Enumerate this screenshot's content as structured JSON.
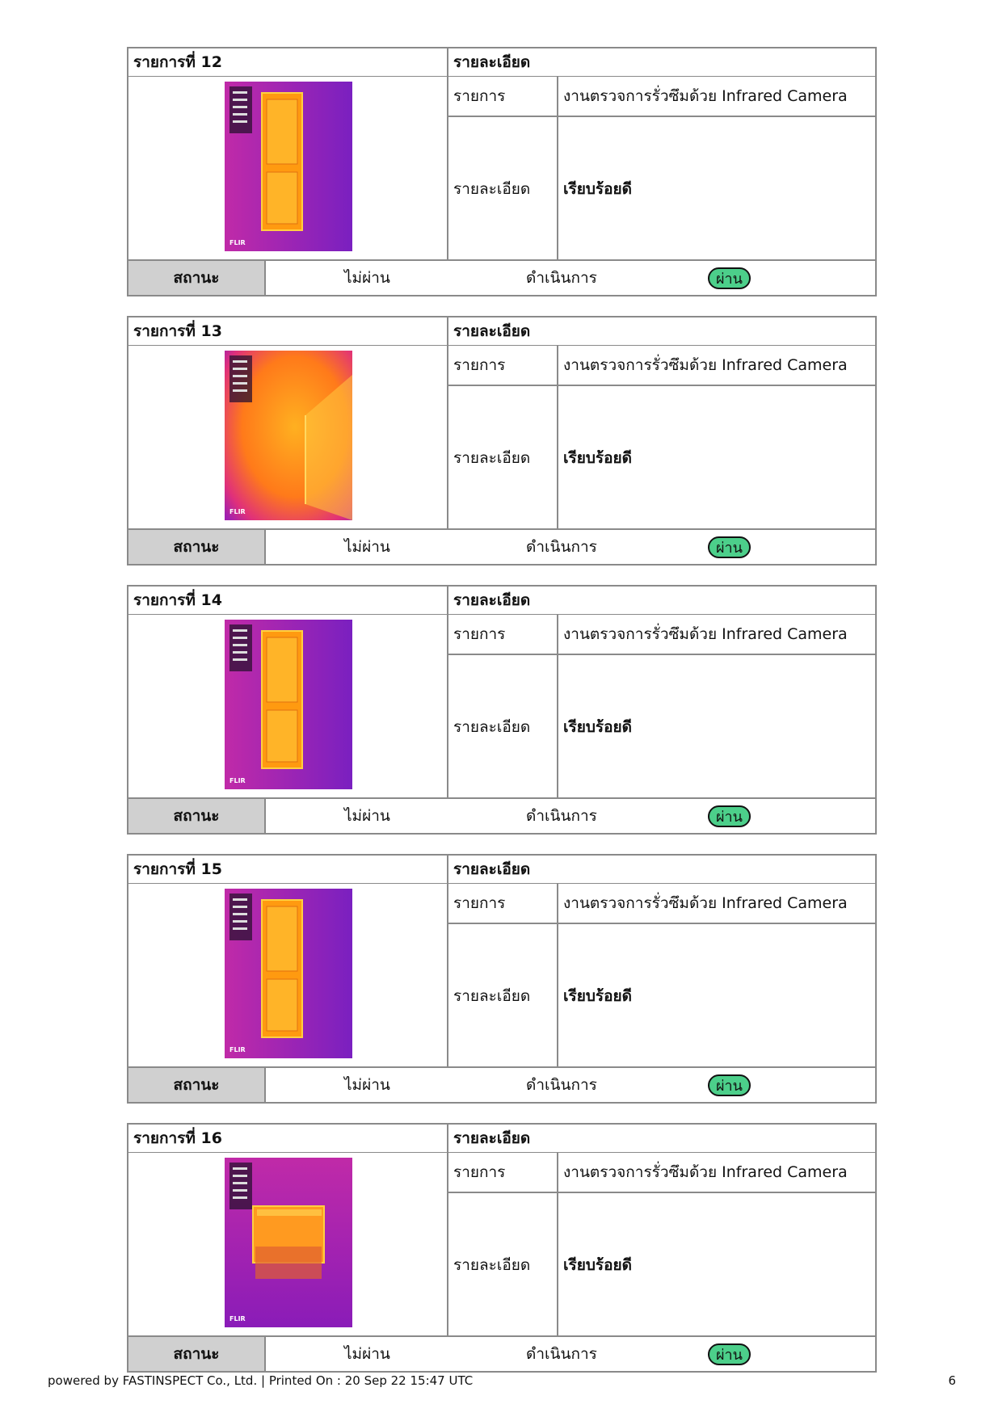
{
  "labels": {
    "detail_header": "รายละเอียด",
    "row_item": "รายการ",
    "row_detail": "รายละเอียด",
    "status_label": "สถานะ",
    "status_fail": "ไม่ผ่าน",
    "status_progress": "ดำเนินการ",
    "status_pass": "ผ่าน"
  },
  "cards": [
    {
      "title": "รายการที่ 12",
      "item": "งานตรวจการรั่วซึมด้วย Infrared Camera",
      "detail": "เรียบร้อยดี",
      "image": "thermal-door-image"
    },
    {
      "title": "รายการที่ 13",
      "item": "งานตรวจการรั่วซึมด้วย Infrared Camera",
      "detail": "เรียบร้อยดี",
      "image": "thermal-wall-corner-image"
    },
    {
      "title": "รายการที่ 14",
      "item": "งานตรวจการรั่วซึมด้วย Infrared Camera",
      "detail": "เรียบร้อยดี",
      "image": "thermal-door-image"
    },
    {
      "title": "รายการที่ 15",
      "item": "งานตรวจการรั่วซึมด้วย Infrared Camera",
      "detail": "เรียบร้อยดี",
      "image": "thermal-door-image"
    },
    {
      "title": "รายการที่ 16",
      "item": "งานตรวจการรั่วซึมด้วย Infrared Camera",
      "detail": "เรียบร้อยดี",
      "image": "thermal-window-image"
    }
  ],
  "thumb_brand": "FLIR",
  "footer": {
    "text": "powered by FASTINSPECT Co., Ltd. | Printed On : 20 Sep 22 15:47 UTC",
    "page": "6"
  },
  "colors": {
    "pass_badge": "#4ccf8a",
    "status_label_bg": "#d0d0d0",
    "border": "#8a8a8a"
  }
}
